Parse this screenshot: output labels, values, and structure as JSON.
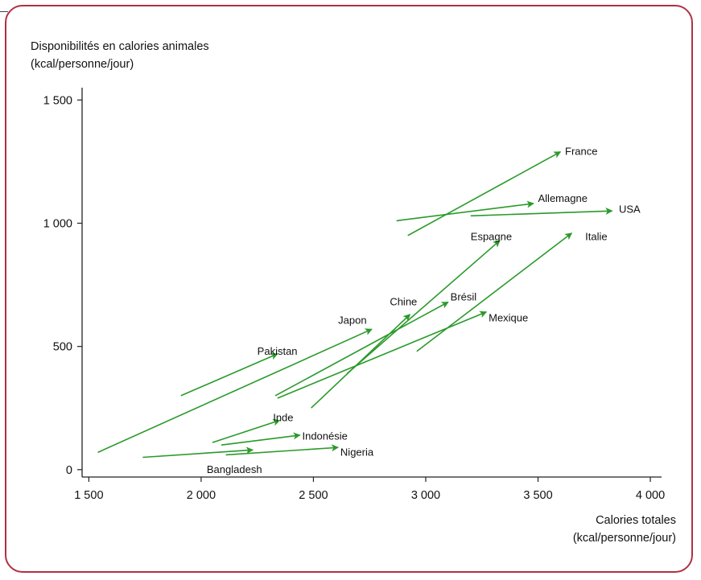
{
  "chart_data": {
    "type": "scatter",
    "ylabel_line1": "Disponibilités en calories animales",
    "ylabel_line2": "(kcal/personne/jour)",
    "xlabel_line1": "Calories totales",
    "xlabel_line2": "(kcal/personne/jour)",
    "xlim": [
      1470,
      4050
    ],
    "ylim": [
      -30,
      1550
    ],
    "x_ticks": [
      {
        "value": 1500,
        "label": "1 500"
      },
      {
        "value": 2000,
        "label": "2 000"
      },
      {
        "value": 2500,
        "label": "2 500"
      },
      {
        "value": 3000,
        "label": "3 000"
      },
      {
        "value": 3500,
        "label": "3 500"
      },
      {
        "value": 4000,
        "label": "4 000"
      }
    ],
    "y_ticks": [
      {
        "value": 0,
        "label": "0"
      },
      {
        "value": 500,
        "label": "500"
      },
      {
        "value": 1000,
        "label": "1 000"
      },
      {
        "value": 1500,
        "label": "1 500"
      }
    ],
    "arrow_color": "#2a9a2a",
    "series": [
      {
        "name": "France",
        "x0": 2920,
        "y0": 950,
        "x1": 3600,
        "y1": 1290
      },
      {
        "name": "Allemagne",
        "x0": 2870,
        "y0": 1010,
        "x1": 3480,
        "y1": 1080
      },
      {
        "name": "USA",
        "x0": 3200,
        "y0": 1030,
        "x1": 3830,
        "y1": 1050
      },
      {
        "name": "Espagne",
        "x0": 2650,
        "y0": 390,
        "x1": 3330,
        "y1": 930
      },
      {
        "name": "Italie",
        "x0": 2960,
        "y0": 480,
        "x1": 3650,
        "y1": 960
      },
      {
        "name": "Chine",
        "x0": 2490,
        "y0": 250,
        "x1": 2930,
        "y1": 630
      },
      {
        "name": "Brésil",
        "x0": 2330,
        "y0": 300,
        "x1": 3100,
        "y1": 680
      },
      {
        "name": "Mexique",
        "x0": 2340,
        "y0": 290,
        "x1": 3270,
        "y1": 640
      },
      {
        "name": "Japon",
        "x0": 1540,
        "y0": 70,
        "x1": 2760,
        "y1": 570
      },
      {
        "name": "Pakistan",
        "x0": 1910,
        "y0": 300,
        "x1": 2340,
        "y1": 470
      },
      {
        "name": "Inde",
        "x0": 2050,
        "y0": 110,
        "x1": 2350,
        "y1": 200
      },
      {
        "name": "Indonésie",
        "x0": 2090,
        "y0": 100,
        "x1": 2440,
        "y1": 140
      },
      {
        "name": "Nigeria",
        "x0": 2110,
        "y0": 60,
        "x1": 2610,
        "y1": 90
      },
      {
        "name": "Bangladesh",
        "x0": 1740,
        "y0": 50,
        "x1": 2230,
        "y1": 80
      }
    ],
    "labels": [
      {
        "name": "France",
        "x": 3620,
        "y": 1290
      },
      {
        "name": "Allemagne",
        "x": 3500,
        "y": 1100
      },
      {
        "name": "USA",
        "x": 3860,
        "y": 1055
      },
      {
        "name": "Espagne",
        "x": 3200,
        "y": 945
      },
      {
        "name": "Italie",
        "x": 3710,
        "y": 945
      },
      {
        "name": "Chine",
        "x": 2840,
        "y": 680
      },
      {
        "name": "Brésil",
        "x": 3110,
        "y": 700
      },
      {
        "name": "Mexique",
        "x": 3280,
        "y": 615
      },
      {
        "name": "Japon",
        "x": 2610,
        "y": 605
      },
      {
        "name": "Pakistan",
        "x": 2250,
        "y": 480
      },
      {
        "name": "Inde",
        "x": 2320,
        "y": 210
      },
      {
        "name": "Indonésie",
        "x": 2450,
        "y": 135
      },
      {
        "name": "Nigeria",
        "x": 2620,
        "y": 70
      },
      {
        "name": "Bangladesh",
        "x": 2025,
        "y": 0
      }
    ]
  }
}
